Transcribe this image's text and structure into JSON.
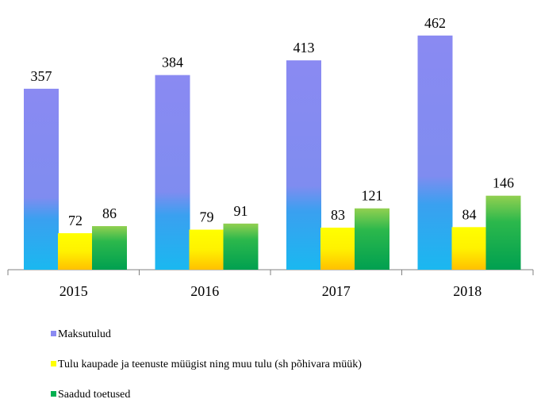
{
  "chart_data": {
    "type": "bar",
    "categories": [
      "2015",
      "2016",
      "2017",
      "2018"
    ],
    "series": [
      {
        "name": "Maksutulud",
        "color": "#8a8af2",
        "values": [
          357,
          384,
          413,
          462
        ]
      },
      {
        "name": "Tulu kaupade ja teenuste müügist ning muu tulu (sh põhivara müük)",
        "color": "#ffff00",
        "values": [
          72,
          79,
          83,
          84
        ]
      },
      {
        "name": "Saadud toetused",
        "color": "#00b050",
        "values": [
          86,
          91,
          121,
          146
        ]
      }
    ],
    "legend": "bottom-left"
  }
}
